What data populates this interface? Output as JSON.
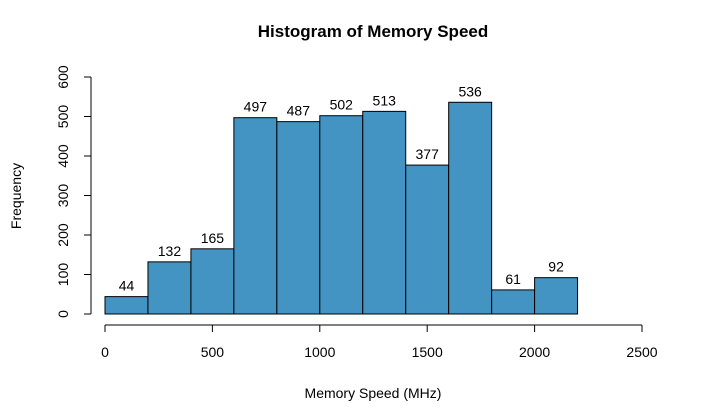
{
  "chart_data": {
    "type": "bar",
    "title": "Histogram of Memory Speed",
    "xlabel": "Memory Speed (MHz)",
    "ylabel": "Frequency",
    "bins": [
      {
        "start": 0,
        "end": 200,
        "count": 44
      },
      {
        "start": 200,
        "end": 400,
        "count": 132
      },
      {
        "start": 400,
        "end": 600,
        "count": 165
      },
      {
        "start": 600,
        "end": 800,
        "count": 497
      },
      {
        "start": 800,
        "end": 1000,
        "count": 487
      },
      {
        "start": 1000,
        "end": 1200,
        "count": 502
      },
      {
        "start": 1200,
        "end": 1400,
        "count": 513
      },
      {
        "start": 1400,
        "end": 1600,
        "count": 377
      },
      {
        "start": 1600,
        "end": 1800,
        "count": 536
      },
      {
        "start": 1800,
        "end": 2000,
        "count": 61
      },
      {
        "start": 2000,
        "end": 2200,
        "count": 92
      }
    ],
    "xlim": [
      0,
      2500
    ],
    "ylim": [
      0,
      600
    ],
    "x_ticks": [
      "0",
      "500",
      "1000",
      "1500",
      "2000",
      "2500"
    ],
    "y_ticks": [
      "0",
      "100",
      "200",
      "300",
      "400",
      "500",
      "600"
    ],
    "bar_color": "#4393c3",
    "grid": false
  }
}
